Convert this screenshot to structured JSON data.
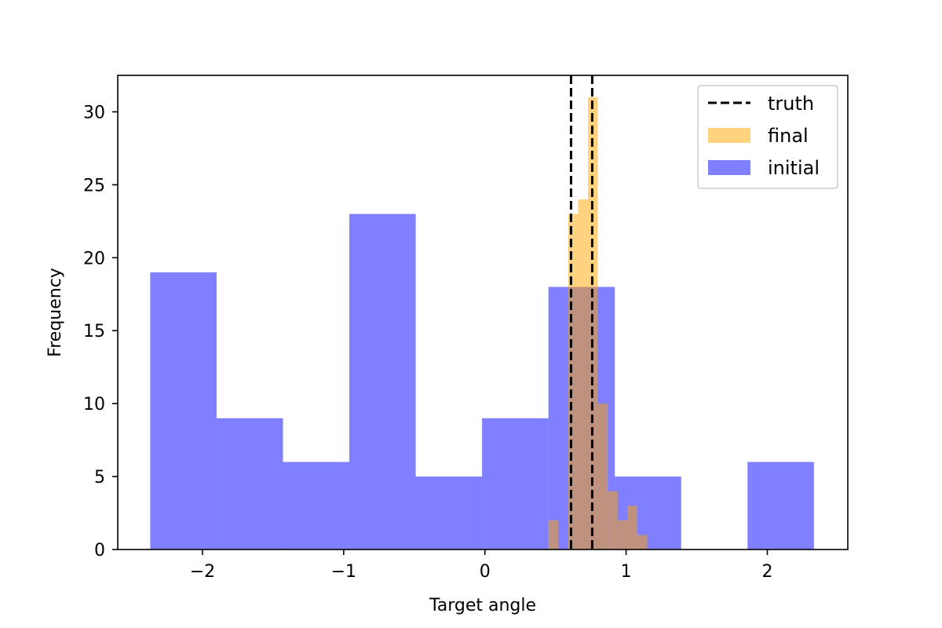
{
  "chart_data": {
    "type": "histogram",
    "xlabel": "Target angle",
    "ylabel": "Frequency",
    "xlim": [
      -2.6,
      2.57
    ],
    "ylim": [
      0,
      32.5
    ],
    "xticks": [
      -2,
      -1,
      0,
      1,
      2
    ],
    "xtick_labels": [
      "−2",
      "−1",
      "0",
      "1",
      "2"
    ],
    "yticks": [
      0,
      5,
      10,
      15,
      20,
      25,
      30
    ],
    "ytick_labels": [
      "0",
      "5",
      "10",
      "15",
      "20",
      "25",
      "30"
    ],
    "grid": false,
    "legend_position": "top-right",
    "series": [
      {
        "name": "initial",
        "color": "#0000ff",
        "opacity": 0.5,
        "bin_edges": [
          -2.37,
          -1.9,
          -1.43,
          -0.96,
          -0.49,
          -0.02,
          0.45,
          0.92,
          1.39,
          1.86,
          2.33
        ],
        "counts": [
          19,
          9,
          6,
          23,
          5,
          9,
          18,
          5,
          0,
          6
        ]
      },
      {
        "name": "final",
        "color": "#ffa500",
        "opacity": 0.5,
        "bin_edges": [
          0.45,
          0.52,
          0.59,
          0.66,
          0.73,
          0.8,
          0.87,
          0.94,
          1.01,
          1.08,
          1.15
        ],
        "counts": [
          2,
          0,
          23,
          24,
          31,
          10,
          4,
          2,
          3,
          1
        ]
      }
    ],
    "reference_lines": [
      {
        "name": "truth",
        "style": "dashed",
        "color": "#000000",
        "x": [
          0.61,
          0.76
        ]
      }
    ],
    "legend": [
      {
        "label": "truth",
        "kind": "dashed-line",
        "color": "#000000"
      },
      {
        "label": "final",
        "kind": "patch",
        "color": "#ffa500"
      },
      {
        "label": "initial",
        "kind": "patch",
        "color": "#0000ff"
      }
    ]
  }
}
